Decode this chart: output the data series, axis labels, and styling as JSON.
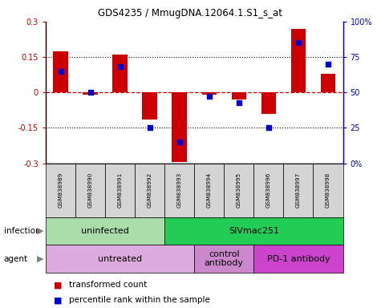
{
  "title": "GDS4235 / MmugDNA.12064.1.S1_s_at",
  "samples": [
    "GSM838989",
    "GSM838990",
    "GSM838991",
    "GSM838992",
    "GSM838993",
    "GSM838994",
    "GSM838995",
    "GSM838996",
    "GSM838997",
    "GSM838998"
  ],
  "transformed_count": [
    0.175,
    -0.01,
    0.16,
    -0.115,
    -0.295,
    -0.01,
    -0.03,
    -0.09,
    0.27,
    0.08
  ],
  "percentile_rank": [
    65,
    50,
    68,
    25,
    15,
    47,
    43,
    25,
    85,
    70
  ],
  "ylim_left": [
    -0.3,
    0.3
  ],
  "ylim_right": [
    0,
    100
  ],
  "yticks_left": [
    -0.3,
    -0.15,
    0.0,
    0.15,
    0.3
  ],
  "yticks_right": [
    0,
    25,
    50,
    75,
    100
  ],
  "bar_color": "#cc0000",
  "dot_color": "#0000cc",
  "infection_groups": [
    {
      "label": "uninfected",
      "start": 0,
      "end": 4,
      "color": "#aaddaa"
    },
    {
      "label": "SIVmac251",
      "start": 4,
      "end": 10,
      "color": "#22cc55"
    }
  ],
  "agent_groups": [
    {
      "label": "untreated",
      "start": 0,
      "end": 5,
      "color": "#ddaadd"
    },
    {
      "label": "control\nantibody",
      "start": 5,
      "end": 7,
      "color": "#cc88cc"
    },
    {
      "label": "PD-1 antibody",
      "start": 7,
      "end": 10,
      "color": "#cc44cc"
    }
  ],
  "infection_label": "infection",
  "agent_label": "agent",
  "legend_bar_label": "transformed count",
  "legend_dot_label": "percentile rank within the sample",
  "bg_color": "#ffffff"
}
